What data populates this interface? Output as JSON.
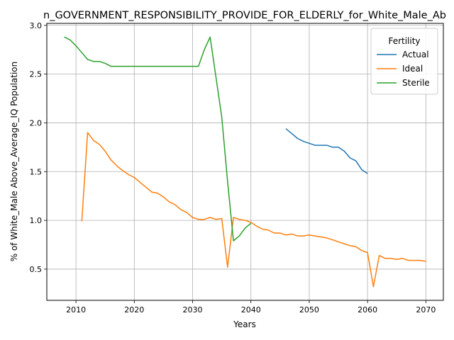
{
  "chart_data": {
    "type": "line",
    "title": "n_GOVERNMENT_RESPONSIBILITY_PROVIDE_FOR_ELDERLY_for_White_Male_Ab",
    "xlabel": "Years",
    "ylabel": "% of White_Male Above_Average_IQ Population",
    "xlim": [
      2005,
      2073
    ],
    "ylim": [
      0.18,
      3.02
    ],
    "xticks": [
      2010,
      2020,
      2030,
      2040,
      2050,
      2060,
      2070
    ],
    "yticks": [
      0.5,
      1.0,
      1.5,
      2.0,
      2.5,
      3.0
    ],
    "xtick_labels": [
      "2010",
      "2020",
      "2030",
      "2040",
      "2050",
      "2060",
      "2070"
    ],
    "ytick_labels": [
      "0.5",
      "1.0",
      "1.5",
      "2.0",
      "2.5",
      "3.0"
    ],
    "grid": true,
    "legend": {
      "title": "Fertility",
      "placement": "top-right"
    },
    "series": [
      {
        "name": "Actual",
        "color": "#1f77b4",
        "x": [
          2046,
          2047,
          2048,
          2049,
          2050,
          2051,
          2052,
          2053,
          2054,
          2055,
          2056,
          2057,
          2058,
          2059,
          2060
        ],
        "y": [
          1.94,
          1.89,
          1.84,
          1.81,
          1.79,
          1.77,
          1.77,
          1.77,
          1.75,
          1.75,
          1.71,
          1.64,
          1.61,
          1.52,
          1.48
        ]
      },
      {
        "name": "Ideal",
        "color": "#ff7f0e",
        "x": [
          2011,
          2012,
          2013,
          2014,
          2015,
          2016,
          2017,
          2018,
          2019,
          2020,
          2021,
          2022,
          2023,
          2024,
          2025,
          2026,
          2027,
          2028,
          2029,
          2030,
          2031,
          2032,
          2033,
          2034,
          2035,
          2036,
          2037,
          2038,
          2039,
          2040,
          2041,
          2042,
          2043,
          2044,
          2045,
          2046,
          2047,
          2048,
          2049,
          2050,
          2051,
          2052,
          2053,
          2054,
          2055,
          2056,
          2057,
          2058,
          2059,
          2060,
          2061,
          2062,
          2063,
          2064,
          2065,
          2066,
          2067,
          2068,
          2069,
          2070
        ],
        "y": [
          0.99,
          1.9,
          1.82,
          1.78,
          1.71,
          1.62,
          1.56,
          1.51,
          1.47,
          1.44,
          1.39,
          1.34,
          1.29,
          1.28,
          1.24,
          1.19,
          1.16,
          1.11,
          1.08,
          1.03,
          1.01,
          1.01,
          1.03,
          1.01,
          1.02,
          0.52,
          1.03,
          1.01,
          1.0,
          0.98,
          0.94,
          0.91,
          0.9,
          0.87,
          0.87,
          0.85,
          0.86,
          0.84,
          0.84,
          0.85,
          0.84,
          0.83,
          0.82,
          0.8,
          0.78,
          0.76,
          0.74,
          0.73,
          0.69,
          0.67,
          0.32,
          0.64,
          0.61,
          0.61,
          0.6,
          0.61,
          0.59,
          0.59,
          0.59,
          0.58
        ]
      },
      {
        "name": "Sterile",
        "color": "#2ca02c",
        "x": [
          2008,
          2009,
          2010,
          2011,
          2012,
          2013,
          2014,
          2015,
          2016,
          2017,
          2018,
          2019,
          2020,
          2021,
          2022,
          2023,
          2024,
          2025,
          2026,
          2027,
          2028,
          2029,
          2030,
          2031,
          2032,
          2033,
          2034,
          2035,
          2036,
          2037,
          2038,
          2039,
          2040
        ],
        "y": [
          2.88,
          2.85,
          2.79,
          2.72,
          2.65,
          2.63,
          2.63,
          2.61,
          2.58,
          2.58,
          2.58,
          2.58,
          2.58,
          2.58,
          2.58,
          2.58,
          2.58,
          2.58,
          2.58,
          2.58,
          2.58,
          2.58,
          2.58,
          2.58,
          2.75,
          2.88,
          2.47,
          2.06,
          1.4,
          0.79,
          0.84,
          0.92,
          0.97
        ]
      }
    ]
  }
}
